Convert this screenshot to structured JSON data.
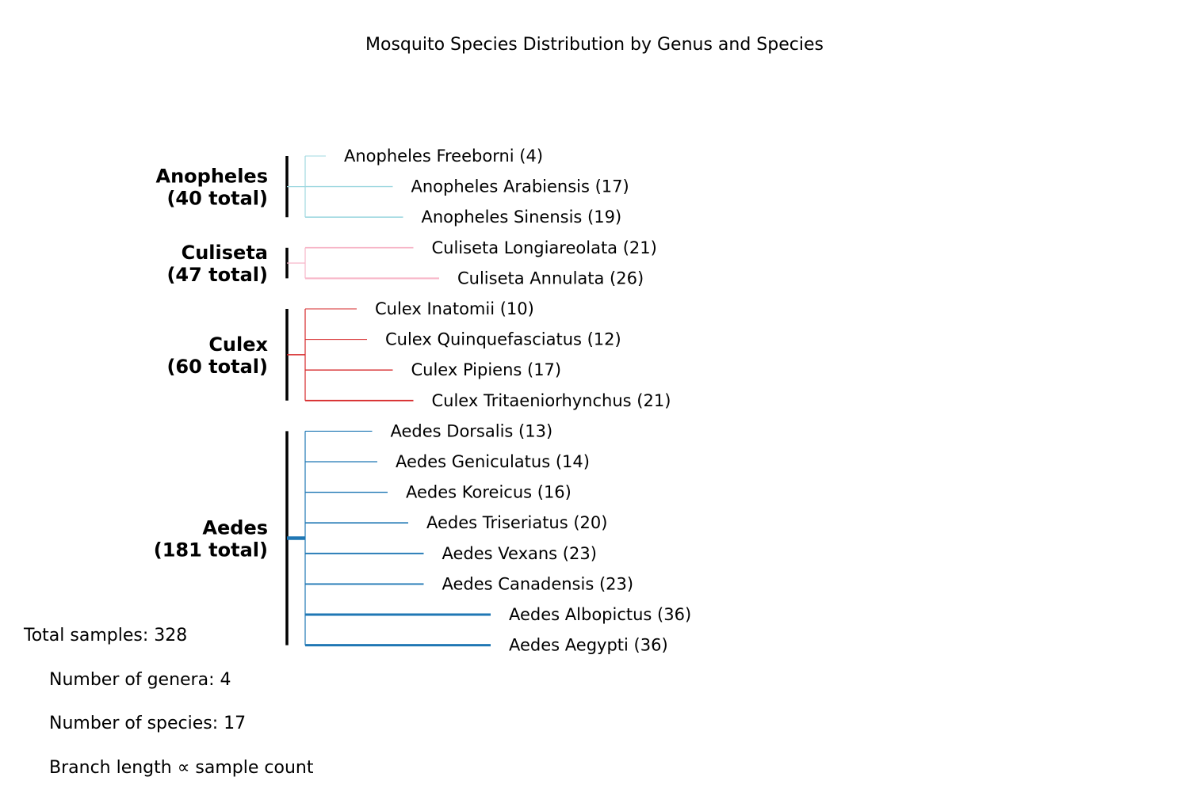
{
  "title": "Mosquito Species Distribution by Genus and Species",
  "genera": [
    {
      "name": "Anopheles",
      "total_label": "(40 total)",
      "total": 40,
      "color": "#9fd8e0",
      "species": [
        {
          "label": "Anopheles Freeborni (4)",
          "count": 4
        },
        {
          "label": "Anopheles Arabiensis (17)",
          "count": 17
        },
        {
          "label": "Anopheles Sinensis (19)",
          "count": 19
        }
      ]
    },
    {
      "name": "Culiseta",
      "total_label": "(47 total)",
      "total": 47,
      "color": "#f7b6c8",
      "species": [
        {
          "label": "Culiseta Longiareolata (21)",
          "count": 21
        },
        {
          "label": "Culiseta Annulata (26)",
          "count": 26
        }
      ]
    },
    {
      "name": "Culex",
      "total_label": "(60 total)",
      "total": 60,
      "color": "#d62728",
      "species": [
        {
          "label": "Culex Inatomii (10)",
          "count": 10
        },
        {
          "label": "Culex Quinquefasciatus (12)",
          "count": 12
        },
        {
          "label": "Culex Pipiens (17)",
          "count": 17
        },
        {
          "label": "Culex Tritaeniorhynchus (21)",
          "count": 21
        }
      ]
    },
    {
      "name": "Aedes",
      "total_label": "(181 total)",
      "total": 181,
      "color": "#1f77b4",
      "species": [
        {
          "label": "Aedes Dorsalis (13)",
          "count": 13
        },
        {
          "label": "Aedes Geniculatus (14)",
          "count": 14
        },
        {
          "label": "Aedes Koreicus (16)",
          "count": 16
        },
        {
          "label": "Aedes Triseriatus (20)",
          "count": 20
        },
        {
          "label": "Aedes Vexans (23)",
          "count": 23
        },
        {
          "label": "Aedes Canadensis (23)",
          "count": 23
        },
        {
          "label": "Aedes Albopictus (36)",
          "count": 36
        },
        {
          "label": "Aedes Aegypti (36)",
          "count": 36
        }
      ]
    }
  ],
  "stats": {
    "total": "Total samples: 328",
    "genera": "Number of genera: 4",
    "species": "Number of species: 17",
    "branch": "Branch length ∝ sample count"
  }
}
